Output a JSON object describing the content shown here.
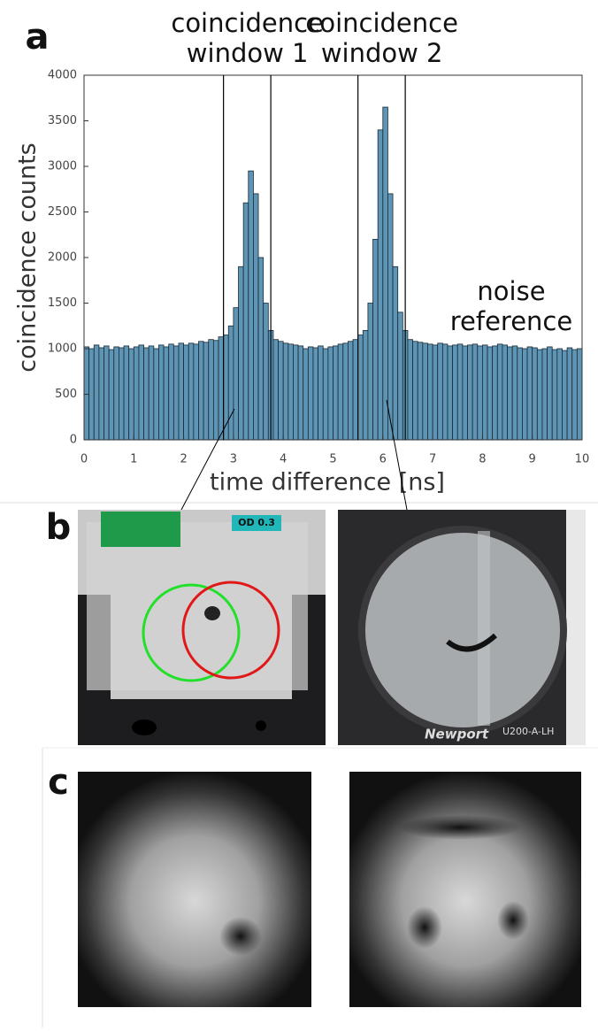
{
  "panel_labels": {
    "a": "a",
    "b": "b",
    "c": "c"
  },
  "chart_data": {
    "type": "histogram",
    "x_label": "time difference [ns]",
    "y_label": "coincidence counts",
    "color": "#5e95b5",
    "edge_color": "#1a2a35",
    "bins": [
      0,
      0.1,
      0.2,
      0.3,
      0.4,
      0.5,
      0.6,
      0.7,
      0.8,
      0.9,
      1,
      1.1,
      1.2,
      1.3,
      1.4,
      1.5,
      1.6,
      1.7,
      1.8,
      1.9,
      2,
      2.1,
      2.2,
      2.3,
      2.4,
      2.5,
      2.6,
      2.7,
      2.8,
      2.9,
      3,
      3.1,
      3.2,
      3.3,
      3.4,
      3.5,
      3.6,
      3.7,
      3.8,
      3.9,
      4,
      4.1,
      4.2,
      4.3,
      4.4,
      4.5,
      4.6,
      4.7,
      4.8,
      4.9,
      5,
      5.1,
      5.2,
      5.3,
      5.4,
      5.5,
      5.6,
      5.7,
      5.8,
      5.9,
      6,
      6.1,
      6.2,
      6.3,
      6.4,
      6.5,
      6.6,
      6.7,
      6.8,
      6.9,
      7,
      7.1,
      7.2,
      7.3,
      7.4,
      7.5,
      7.6,
      7.7,
      7.8,
      7.9,
      8,
      8.1,
      8.2,
      8.3,
      8.4,
      8.5,
      8.6,
      8.7,
      8.8,
      8.9,
      9,
      9.1,
      9.2,
      9.3,
      9.4,
      9.5,
      9.6,
      9.7,
      9.8,
      9.9,
      10
    ],
    "values": [
      1020,
      1000,
      1040,
      1010,
      1030,
      990,
      1020,
      1010,
      1030,
      1000,
      1020,
      1040,
      1010,
      1030,
      1000,
      1040,
      1020,
      1050,
      1030,
      1060,
      1040,
      1060,
      1050,
      1080,
      1070,
      1100,
      1090,
      1130,
      1150,
      1250,
      1450,
      1900,
      2600,
      2950,
      2700,
      2000,
      1500,
      1200,
      1100,
      1080,
      1060,
      1050,
      1040,
      1030,
      1000,
      1020,
      1010,
      1030,
      1000,
      1020,
      1030,
      1050,
      1060,
      1080,
      1100,
      1150,
      1200,
      1500,
      2200,
      3400,
      3650,
      2700,
      1900,
      1400,
      1200,
      1100,
      1080,
      1070,
      1060,
      1050,
      1040,
      1060,
      1050,
      1030,
      1040,
      1050,
      1030,
      1040,
      1050,
      1030,
      1040,
      1020,
      1030,
      1050,
      1040,
      1020,
      1030,
      1010,
      1000,
      1020,
      1010,
      990,
      1000,
      1020,
      990,
      1000,
      980,
      1010,
      990,
      1000
    ],
    "xlim": [
      0,
      10
    ],
    "xticks": [
      0,
      1,
      2,
      3,
      4,
      5,
      6,
      7,
      8,
      9,
      10
    ],
    "ylim": [
      0,
      4000
    ],
    "yticks": [
      0,
      500,
      1000,
      1500,
      2000,
      2500,
      3000,
      3500,
      4000
    ],
    "windows": [
      [
        2.8,
        3.75
      ],
      [
        5.5,
        6.45
      ]
    ],
    "annotations": [
      [
        "coincidence",
        "window 1"
      ],
      [
        "coincidence",
        "window 2"
      ],
      [
        "noise",
        "reference"
      ]
    ]
  },
  "photo_texts": {
    "filter_label": "OD 0.3",
    "brand": "Newport",
    "model": "U200-A-LH"
  }
}
